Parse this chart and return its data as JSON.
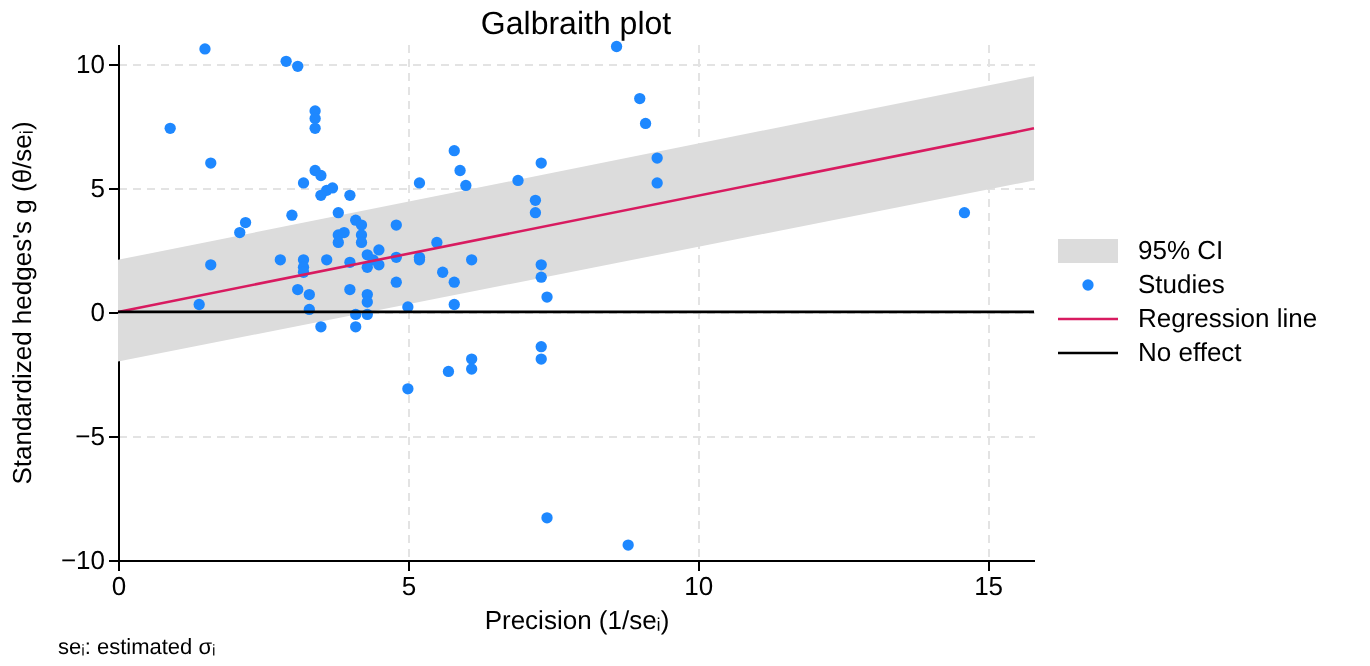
{
  "chart_data": {
    "type": "scatter",
    "title": "Galbraith plot",
    "xlabel": "Precision (1/seᵢ)",
    "ylabel": "Standardized hedges's g (θ/seᵢ)",
    "xlim": [
      0,
      15.8
    ],
    "ylim": [
      -10,
      10.8
    ],
    "xticks": [
      0,
      5,
      10,
      15
    ],
    "yticks": [
      -10,
      -5,
      0,
      5,
      10
    ],
    "grid": true,
    "legend": "right",
    "annotations": [
      "seᵢ: estimated σᵢ",
      "95% CI"
    ],
    "series": [
      {
        "name": "Regression line",
        "type": "line",
        "color": "#d81b60",
        "x": [
          0,
          15.8
        ],
        "values": [
          0,
          7.4
        ],
        "lower": [
          -2.0,
          5.3
        ],
        "upper": [
          2.1,
          9.5
        ]
      },
      {
        "name": "Studies",
        "color": "#1e88ff",
        "x": [
          1.5,
          2.9,
          3.1,
          0.9,
          3.4,
          3.4,
          3.4,
          1.6,
          3.4,
          3.5,
          3.2,
          3.6,
          3.5,
          3.7,
          4.0,
          3.0,
          3.8,
          4.1,
          4.2,
          2.2,
          2.1,
          4.8,
          3.8,
          3.9,
          3.8,
          4.2,
          4.2,
          4.0,
          4.3,
          4.5,
          4.4,
          4.3,
          4.5,
          4.8,
          2.8,
          3.2,
          3.2,
          3.2,
          3.6,
          1.6,
          4.8,
          4.0,
          3.1,
          3.3,
          4.3,
          4.3,
          1.4,
          3.3,
          4.1,
          4.3,
          3.5,
          4.1,
          8.6,
          9.0,
          9.1,
          9.3,
          9.3,
          5.8,
          5.9,
          6.0,
          5.2,
          7.3,
          6.9,
          7.2,
          7.2,
          5.5,
          5.2,
          5.2,
          6.1,
          5.6,
          5.8,
          7.3,
          7.3,
          7.4,
          5.0,
          5.8,
          7.3,
          7.3,
          6.1,
          6.1,
          5.7,
          5.0,
          7.4,
          8.8,
          14.6
        ],
        "values": [
          10.6,
          10.1,
          9.9,
          7.4,
          8.1,
          7.8,
          7.4,
          6.0,
          5.7,
          5.5,
          5.2,
          4.9,
          4.7,
          5.0,
          4.7,
          3.9,
          4.0,
          3.7,
          3.5,
          3.6,
          3.2,
          3.5,
          3.1,
          3.2,
          2.8,
          3.1,
          2.8,
          2.0,
          2.3,
          2.5,
          2.1,
          1.8,
          1.9,
          2.2,
          2.1,
          2.1,
          1.8,
          1.6,
          2.1,
          1.9,
          1.2,
          0.9,
          0.9,
          0.7,
          0.7,
          0.4,
          0.3,
          0.1,
          -0.1,
          -0.1,
          -0.6,
          -0.6,
          10.7,
          8.6,
          7.6,
          6.2,
          5.2,
          6.5,
          5.7,
          5.1,
          5.2,
          6.0,
          5.3,
          4.5,
          4.0,
          2.8,
          2.2,
          2.1,
          2.1,
          1.6,
          1.2,
          1.9,
          1.4,
          0.6,
          0.2,
          0.3,
          -1.4,
          -1.9,
          -1.9,
          -2.3,
          -2.4,
          -3.1,
          -8.3,
          -9.4,
          4.0
        ]
      }
    ],
    "ref_lines": [
      {
        "axis": "y",
        "value": 0,
        "label": "No effect",
        "color": "#000000"
      }
    ]
  }
}
